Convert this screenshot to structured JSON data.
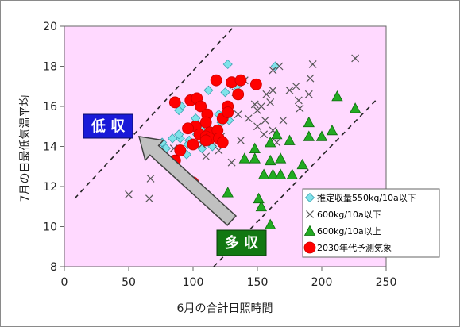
{
  "chart_data": {
    "type": "scatter",
    "title": "",
    "xlabel": "6月の合計日照時間",
    "ylabel": "7月の日最低気温平均",
    "xlim": [
      0,
      250
    ],
    "ylim": [
      8,
      20
    ],
    "xticks": [
      0,
      50,
      100,
      150,
      200,
      250
    ],
    "yticks": [
      8,
      10,
      12,
      14,
      16,
      18,
      20
    ],
    "grid": false,
    "background": "#ffd9ff",
    "legend_position": "bottom-right",
    "series": [
      {
        "name": "推定収量550kg/10a以下",
        "marker": "diamond",
        "color": "#7fe3ea",
        "stroke": "#3aa0b0",
        "points": [
          [
            127,
            18.1
          ],
          [
            164,
            18.0
          ],
          [
            129,
            17.1
          ],
          [
            134,
            17.0
          ],
          [
            112,
            16.8
          ],
          [
            125,
            16.7
          ],
          [
            120,
            15.6
          ],
          [
            125,
            15.7
          ],
          [
            128,
            15.3
          ],
          [
            122,
            15.2
          ],
          [
            91,
            16.0
          ],
          [
            89,
            15.8
          ],
          [
            102,
            15.4
          ],
          [
            100,
            15.0
          ],
          [
            107,
            14.8
          ],
          [
            103,
            14.6
          ],
          [
            97,
            14.3
          ],
          [
            96,
            14.1
          ],
          [
            107,
            13.9
          ],
          [
            115,
            14.0
          ],
          [
            95,
            13.6
          ],
          [
            76,
            14.2
          ],
          [
            76,
            13.8
          ],
          [
            79,
            13.9
          ],
          [
            90,
            14.4
          ],
          [
            84,
            14.4
          ],
          [
            89,
            14.6
          ]
        ]
      },
      {
        "name": "600kg/10a以下",
        "marker": "x",
        "color": "#555555",
        "points": [
          [
            226,
            18.4
          ],
          [
            193,
            18.1
          ],
          [
            167,
            18.0
          ],
          [
            162,
            17.8
          ],
          [
            140,
            17.3
          ],
          [
            180,
            17.0
          ],
          [
            162,
            16.8
          ],
          [
            175,
            16.8
          ],
          [
            157,
            16.6
          ],
          [
            191,
            17.4
          ],
          [
            182,
            16.3
          ],
          [
            190,
            16.6
          ],
          [
            148,
            16.1
          ],
          [
            153,
            16.0
          ],
          [
            150,
            15.8
          ],
          [
            135,
            15.6
          ],
          [
            156,
            15.3
          ],
          [
            170,
            15.3
          ],
          [
            162,
            14.8
          ],
          [
            150,
            15.0
          ],
          [
            155,
            14.6
          ],
          [
            122,
            14.5
          ],
          [
            137,
            14.3
          ],
          [
            107,
            14.1
          ],
          [
            115,
            14.2
          ],
          [
            85,
            13.9
          ],
          [
            78,
            13.5
          ],
          [
            110,
            13.5
          ],
          [
            130,
            13.2
          ],
          [
            67,
            12.4
          ],
          [
            66,
            11.4
          ],
          [
            50,
            11.6
          ],
          [
            133,
            16.7
          ],
          [
            160,
            16.2
          ],
          [
            143,
            15.4
          ],
          [
            165,
            14.2
          ],
          [
            183,
            15.9
          ],
          [
            120,
            13.8
          ]
        ]
      },
      {
        "name": "600kg/10a以上",
        "marker": "triangle",
        "color": "#22aa22",
        "stroke": "#0d6b0d",
        "points": [
          [
            226,
            15.9
          ],
          [
            212,
            16.5
          ],
          [
            190,
            15.2
          ],
          [
            208,
            14.8
          ],
          [
            200,
            14.5
          ],
          [
            190,
            14.5
          ],
          [
            175,
            14.3
          ],
          [
            165,
            14.6
          ],
          [
            160,
            14.2
          ],
          [
            148,
            13.9
          ],
          [
            140,
            13.4
          ],
          [
            148,
            13.4
          ],
          [
            160,
            13.3
          ],
          [
            168,
            13.4
          ],
          [
            162,
            12.6
          ],
          [
            155,
            12.6
          ],
          [
            168,
            12.6
          ],
          [
            177,
            12.6
          ],
          [
            185,
            13.1
          ],
          [
            127,
            11.7
          ],
          [
            151,
            11.4
          ],
          [
            153,
            11.0
          ],
          [
            160,
            10.1
          ]
        ]
      },
      {
        "name": "2030年代予測気象",
        "marker": "circle",
        "color": "#ff0000",
        "stroke": "#cc0000",
        "points": [
          [
            118,
            17.3
          ],
          [
            130,
            17.2
          ],
          [
            137,
            17.3
          ],
          [
            149,
            17.1
          ],
          [
            135,
            16.6
          ],
          [
            98,
            16.3
          ],
          [
            103,
            16.4
          ],
          [
            106,
            16.0
          ],
          [
            127,
            16.0
          ],
          [
            86,
            16.2
          ],
          [
            111,
            15.6
          ],
          [
            123,
            15.4
          ],
          [
            127,
            15.7
          ],
          [
            110,
            15.2
          ],
          [
            102,
            15.0
          ],
          [
            113,
            14.7
          ],
          [
            119,
            14.8
          ],
          [
            96,
            14.9
          ],
          [
            105,
            14.6
          ],
          [
            110,
            14.5
          ],
          [
            113,
            14.4
          ],
          [
            120,
            14.4
          ],
          [
            110,
            14.3
          ],
          [
            123,
            14.2
          ],
          [
            100,
            14.1
          ],
          [
            90,
            13.8
          ],
          [
            86,
            13.3
          ],
          [
            100,
            12.2
          ]
        ]
      }
    ],
    "reference_lines": [
      {
        "style": "dashed",
        "from": [
          8,
          11.4
        ],
        "to": [
          132,
          20.0
        ]
      },
      {
        "style": "dashed",
        "from": [
          116,
          8.0
        ],
        "to": [
          242,
          16.3
        ]
      }
    ],
    "annotations": [
      {
        "text": "低 収",
        "box_color": "#1a1ad8",
        "text_color": "#ffffff"
      },
      {
        "text": "多 収",
        "box_color": "#127812",
        "text_color": "#ffffff"
      }
    ],
    "arrow": {
      "from": [
        130,
        10.3
      ],
      "to": [
        58,
        14.5
      ],
      "fill": "#c0c0c0",
      "stroke": "#404040"
    }
  }
}
